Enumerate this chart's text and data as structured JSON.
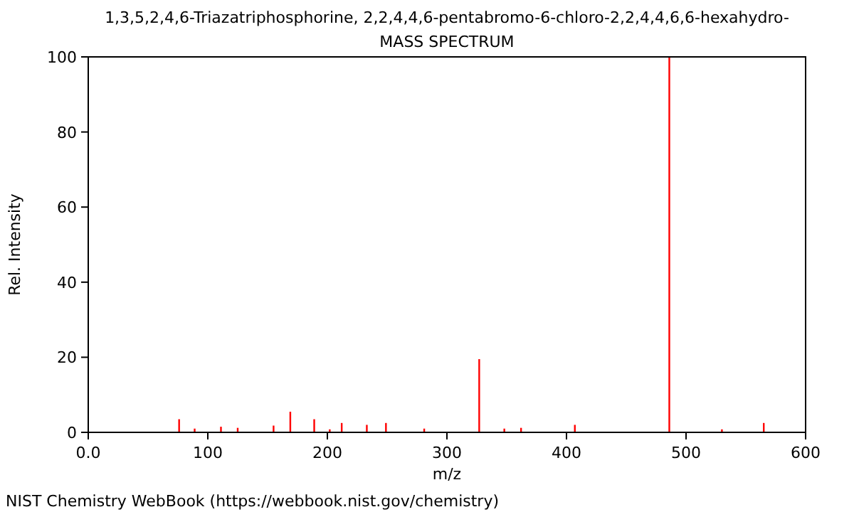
{
  "chart_data": {
    "type": "bar",
    "title": "1,3,5,2,4,6-Triazatriphosphorine, 2,2,4,4,6-pentabromo-6-chloro-2,2,4,4,6,6-hexahydro-",
    "subtitle": "MASS SPECTRUM",
    "xlabel": "m/z",
    "ylabel": "Rel. Intensity",
    "x": [
      76,
      89,
      111,
      125,
      155,
      169,
      189,
      202,
      212,
      233,
      249,
      281,
      327,
      348,
      362,
      407,
      486,
      530,
      565
    ],
    "values": [
      3.5,
      1,
      1.5,
      1.2,
      1.8,
      5.5,
      3.5,
      0.8,
      2.5,
      2,
      2.5,
      1,
      19.5,
      1,
      1.2,
      2,
      100,
      0.8,
      2.5
    ],
    "color": "#ff0000",
    "xlim": [
      0,
      600
    ],
    "xticks": [
      {
        "value": 0,
        "label": "0.0"
      },
      100,
      200,
      300,
      400,
      500,
      600
    ],
    "ylim": [
      0,
      100
    ],
    "yticks": [
      0,
      20,
      40,
      60,
      80,
      100
    ],
    "annotations": [
      "NIST Chemistry WebBook (https://webbook.nist.gov/chemistry)"
    ]
  }
}
